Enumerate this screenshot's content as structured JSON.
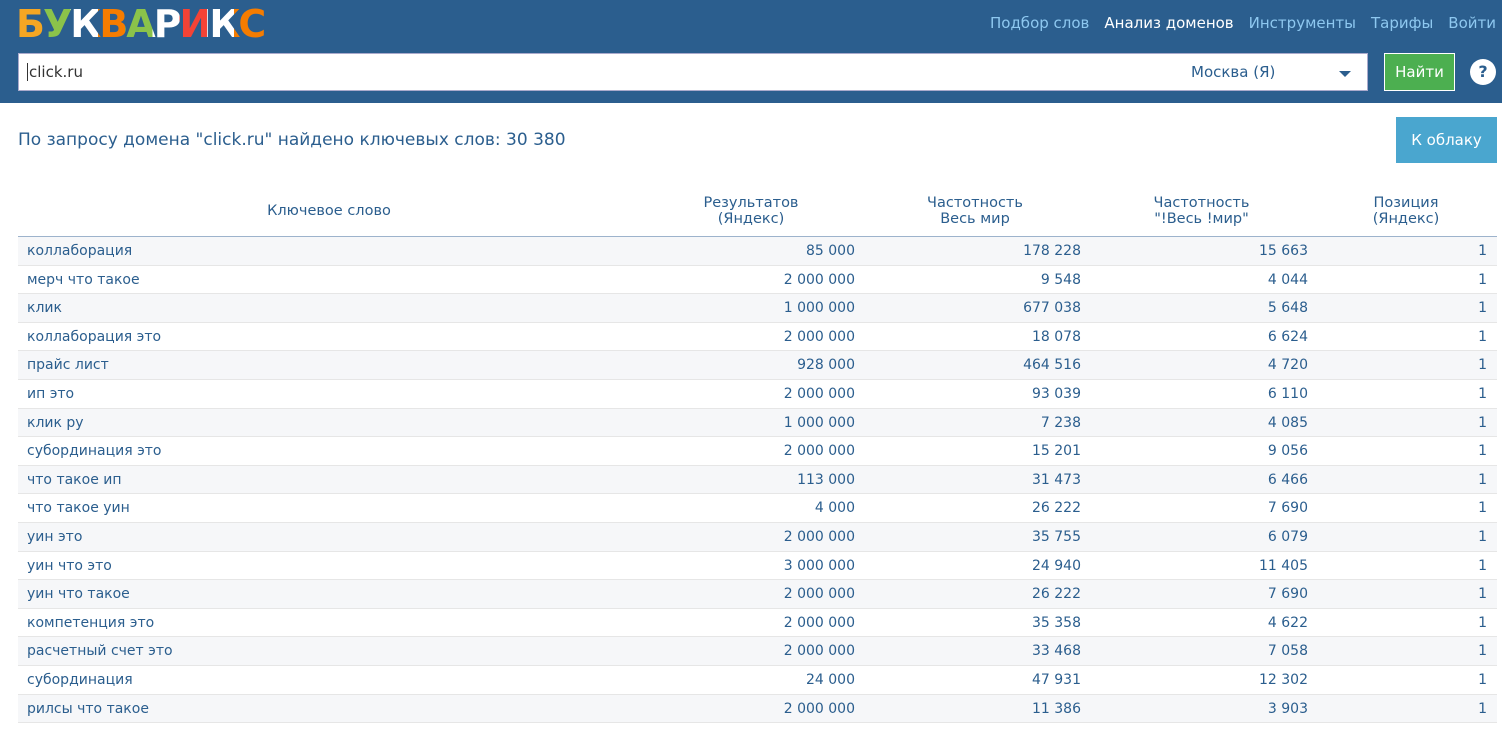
{
  "header": {
    "logo": "БУКВАРИКС",
    "nav": [
      "Подбор слов",
      "Анализ доменов",
      "Инструменты",
      "Тарифы",
      "Войти"
    ],
    "active_nav": 1
  },
  "search": {
    "query": "click.ru",
    "region": "Москва (Я)",
    "button": "Найти",
    "help": "?"
  },
  "summary": "По запросу домена \"click.ru\" найдено ключевых слов: 30 380",
  "cloud_button": "К облаку",
  "table": {
    "columns": [
      "Ключевое слово",
      "Результатов\n(Яндекс)",
      "Частотность\nВесь мир",
      "Частотность\n\"!Весь !мир\"",
      "Позиция\n(Яндекс)"
    ],
    "rows": [
      [
        "коллаборация",
        "85 000",
        "178 228",
        "15 663",
        "1"
      ],
      [
        "мерч что такое",
        "2 000 000",
        "9 548",
        "4 044",
        "1"
      ],
      [
        "клик",
        "1 000 000",
        "677 038",
        "5 648",
        "1"
      ],
      [
        "коллаборация это",
        "2 000 000",
        "18 078",
        "6 624",
        "1"
      ],
      [
        "прайс лист",
        "928 000",
        "464 516",
        "4 720",
        "1"
      ],
      [
        "ип это",
        "2 000 000",
        "93 039",
        "6 110",
        "1"
      ],
      [
        "клик ру",
        "1 000 000",
        "7 238",
        "4 085",
        "1"
      ],
      [
        "субординация это",
        "2 000 000",
        "15 201",
        "9 056",
        "1"
      ],
      [
        "что такое ип",
        "113 000",
        "31 473",
        "6 466",
        "1"
      ],
      [
        "что такое уин",
        "4 000",
        "26 222",
        "7 690",
        "1"
      ],
      [
        "уин это",
        "2 000 000",
        "35 755",
        "6 079",
        "1"
      ],
      [
        "уин что это",
        "3 000 000",
        "24 940",
        "11 405",
        "1"
      ],
      [
        "уин что такое",
        "2 000 000",
        "26 222",
        "7 690",
        "1"
      ],
      [
        "компетенция это",
        "2 000 000",
        "35 358",
        "4 622",
        "1"
      ],
      [
        "расчетный счет это",
        "2 000 000",
        "33 468",
        "7 058",
        "1"
      ],
      [
        "субординация",
        "24 000",
        "47 931",
        "12 302",
        "1"
      ],
      [
        "рилсы что такое",
        "2 000 000",
        "11 386",
        "3 903",
        "1"
      ]
    ]
  }
}
